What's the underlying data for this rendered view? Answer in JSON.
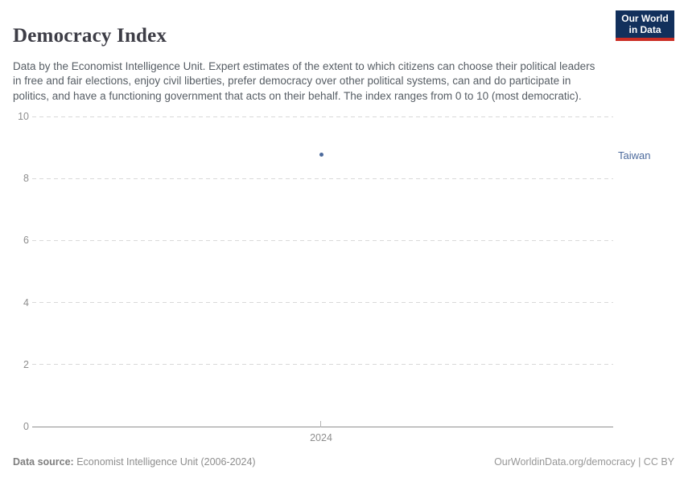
{
  "header": {
    "title": "Democracy Index",
    "subtitle": "Data by the Economist Intelligence Unit. Expert estimates of the extent to which citizens can choose their political leaders in free and fair elections, enjoy civil liberties, prefer democracy over other political systems, can and do participate in politics, and have a functioning government that acts on their behalf. The index ranges from 0 to 10 (most democratic).",
    "logo": {
      "line1": "Our World",
      "line2": "in Data"
    }
  },
  "chart_data": {
    "type": "scatter",
    "title": "Democracy Index",
    "x": [
      2024
    ],
    "series": [
      {
        "name": "Taiwan",
        "values": [
          8.78
        ],
        "color": "#4c6a9c"
      }
    ],
    "ylim": [
      0,
      10
    ],
    "yticks": [
      0,
      2,
      4,
      6,
      8,
      10
    ],
    "xticks": [
      "2024"
    ],
    "grid": "horizontal-dashed",
    "legend_position": "right-entity-label",
    "entity_label": "Taiwan"
  },
  "footer": {
    "datasource_label": "Data source:",
    "datasource_value": " Economist Intelligence Unit (2006-2024)",
    "link": "OurWorldinData.org/democracy | CC BY"
  },
  "colors": {
    "series_blue": "#4c6a9c",
    "logo_navy": "#12305c",
    "logo_red": "#cb2d24",
    "gridline": "#d9d9d9",
    "axis": "#8f8f8f"
  }
}
